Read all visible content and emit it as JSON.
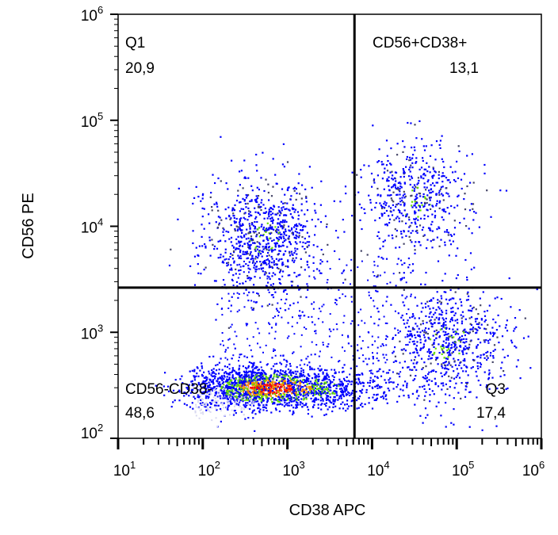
{
  "chart_data": {
    "type": "scatter",
    "subtype": "flow-cytometry-dot-plot",
    "xlabel": "CD38 APC",
    "ylabel": "CD56 PE",
    "x_scale": "log",
    "y_scale": "log",
    "xlim": [
      10,
      1000000
    ],
    "ylim": [
      100,
      1000000
    ],
    "x_ticks": [
      {
        "base": "10",
        "exp": "1"
      },
      {
        "base": "10",
        "exp": "2"
      },
      {
        "base": "10",
        "exp": "3"
      },
      {
        "base": "10",
        "exp": "4"
      },
      {
        "base": "10",
        "exp": "5"
      },
      {
        "base": "10",
        "exp": "6"
      }
    ],
    "y_ticks": [
      {
        "base": "10",
        "exp": "2"
      },
      {
        "base": "10",
        "exp": "3"
      },
      {
        "base": "10",
        "exp": "4"
      },
      {
        "base": "10",
        "exp": "5"
      },
      {
        "base": "10",
        "exp": "6"
      }
    ],
    "gates": {
      "x_threshold": 6200,
      "y_threshold": 2640
    },
    "quadrants": [
      {
        "name": "Q1",
        "value": "20,9"
      },
      {
        "name": "CD56+CD38+",
        "value": "13,1"
      },
      {
        "name": "CD56-CD38-",
        "value": "48,6"
      },
      {
        "name": "Q3",
        "value": "17,4"
      }
    ],
    "populations": [
      {
        "log_x": 2.75,
        "log_y": 2.48,
        "sd_x": 0.42,
        "sd_y": 0.1,
        "share": 0.486
      },
      {
        "log_x": 2.7,
        "log_y": 3.9,
        "sd_x": 0.33,
        "sd_y": 0.28,
        "share": 0.209
      },
      {
        "log_x": 4.5,
        "log_y": 4.25,
        "sd_x": 0.33,
        "sd_y": 0.27,
        "share": 0.131
      },
      {
        "log_x": 4.9,
        "log_y": 2.9,
        "sd_x": 0.38,
        "sd_y": 0.28,
        "share": 0.174
      }
    ],
    "density_colors": [
      "#0000ff",
      "#66dd00",
      "#ff8800",
      "#ff0000"
    ],
    "background_event_color": "#d8d8f0"
  }
}
